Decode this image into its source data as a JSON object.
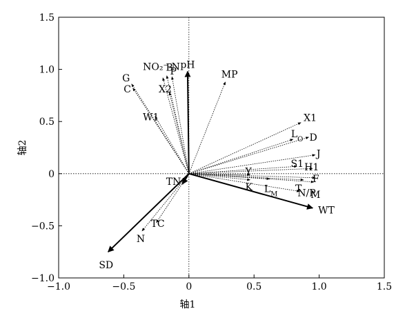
{
  "chart_data": {
    "type": "scatter",
    "title": "",
    "xlabel": "轴1",
    "ylabel": "轴2",
    "xlim": [
      -1.0,
      1.5
    ],
    "ylim": [
      -1.0,
      1.5
    ],
    "xticks": [
      -1.0,
      -0.5,
      0,
      0.5,
      1.0,
      1.5
    ],
    "yticks": [
      -1.0,
      -0.5,
      0,
      0.5,
      1.0,
      1.5
    ],
    "xtick_labels": [
      "−1.0",
      "−0.5",
      "0",
      "0.5",
      "1.0",
      "1.5"
    ],
    "ytick_labels": [
      "−1.0",
      "−0.5",
      "0",
      "0.5",
      "1.0",
      "1.5"
    ],
    "grid": false,
    "reference_lines": [
      "x = 0 dotted",
      "y = 0 dotted"
    ],
    "environmental_vectors": [
      {
        "label": "pH",
        "x": -0.01,
        "y": 0.98
      },
      {
        "label": "TN",
        "x": -0.05,
        "y": -0.1
      },
      {
        "label": "WT",
        "x": 0.95,
        "y": -0.33
      },
      {
        "label": "SD",
        "x": -0.62,
        "y": -0.75
      }
    ],
    "species_vectors": [
      {
        "label": "G",
        "x": -0.44,
        "y": 0.86
      },
      {
        "label": "C",
        "x": -0.43,
        "y": 0.82
      },
      {
        "label": "NO₂⁻-N",
        "x": -0.2,
        "y": 0.92
      },
      {
        "label": "B",
        "x": -0.17,
        "y": 0.94
      },
      {
        "label": "P",
        "x": -0.13,
        "y": 0.93
      },
      {
        "label": "X2",
        "x": -0.15,
        "y": 0.78
      },
      {
        "label": "W1",
        "x": -0.26,
        "y": 0.55
      },
      {
        "label": "MP",
        "x": 0.28,
        "y": 0.88
      },
      {
        "label": "X1",
        "x": 0.86,
        "y": 0.49
      },
      {
        "label": "L_O",
        "x": 0.8,
        "y": 0.33
      },
      {
        "label": "D",
        "x": 0.92,
        "y": 0.35
      },
      {
        "label": "J",
        "x": 0.97,
        "y": 0.18
      },
      {
        "label": "S1",
        "x": 0.83,
        "y": 0.07
      },
      {
        "label": "H1",
        "x": 0.95,
        "y": 0.05
      },
      {
        "label": "Y",
        "x": 0.47,
        "y": -0.01
      },
      {
        "label": "K",
        "x": 0.47,
        "y": -0.06
      },
      {
        "label": "L_M",
        "x": 0.62,
        "y": -0.05
      },
      {
        "label": "T",
        "x": 0.88,
        "y": -0.06
      },
      {
        "label": "F",
        "x": 0.97,
        "y": -0.04
      },
      {
        "label": "M",
        "x": 0.96,
        "y": -0.08
      },
      {
        "label": "N/P",
        "x": 0.85,
        "y": -0.17
      },
      {
        "label": "TC",
        "x": -0.25,
        "y": -0.47
      },
      {
        "label": "N",
        "x": -0.36,
        "y": -0.55
      }
    ]
  }
}
